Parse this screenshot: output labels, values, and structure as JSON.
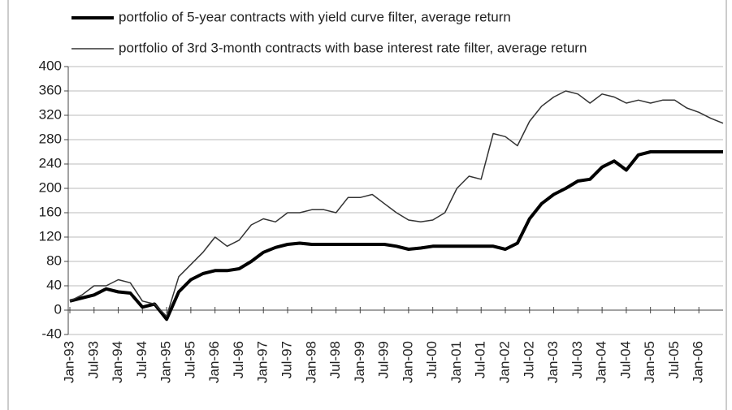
{
  "chart_data": {
    "type": "line",
    "categories": [
      "Jan-93",
      null,
      "Jul-93",
      null,
      "Jan-94",
      null,
      "Jul-94",
      null,
      "Jan-95",
      null,
      "Jul-95",
      null,
      "Jan-96",
      null,
      "Jul-96",
      null,
      "Jan-97",
      null,
      "Jul-97",
      null,
      "Jan-98",
      null,
      "Jul-98",
      null,
      "Jan-99",
      null,
      "Jul-99",
      null,
      "Jan-00",
      null,
      "Jul-00",
      null,
      "Jan-01",
      null,
      "Jul-01",
      null,
      "Jan-02",
      null,
      "Jul-02",
      null,
      "Jan-03",
      null,
      "Jul-03",
      null,
      "Jan-04",
      null,
      "Jul-04",
      null,
      "Jan-05",
      null,
      "Jul-05",
      null,
      "Jan-06",
      null,
      null
    ],
    "series": [
      {
        "name": "portfolio of 5-year contracts with yield curve filter, average return",
        "color": "#000000",
        "width": 4,
        "values": [
          15,
          20,
          25,
          35,
          30,
          28,
          5,
          10,
          -15,
          30,
          50,
          60,
          65,
          65,
          68,
          80,
          95,
          103,
          108,
          110,
          108,
          108,
          108,
          108,
          108,
          108,
          108,
          105,
          100,
          102,
          105,
          105,
          105,
          105,
          105,
          105,
          100,
          110,
          150,
          175,
          190,
          200,
          212,
          215,
          235,
          245,
          230,
          255,
          260,
          260,
          260,
          260,
          260,
          260,
          260
        ]
      },
      {
        "name": "portfolio of 3rd 3-month contracts with base interest rate filter, average return",
        "color": "#333333",
        "width": 1.5,
        "values": [
          15,
          25,
          40,
          40,
          50,
          45,
          15,
          10,
          -10,
          55,
          75,
          95,
          120,
          105,
          115,
          140,
          150,
          145,
          160,
          160,
          165,
          165,
          160,
          185,
          185,
          190,
          175,
          160,
          148,
          145,
          148,
          160,
          200,
          220,
          215,
          290,
          285,
          270,
          310,
          335,
          350,
          360,
          355,
          340,
          355,
          350,
          340,
          345,
          340,
          345,
          345,
          332,
          325,
          315,
          307
        ]
      }
    ],
    "ylim": [
      -40,
      400
    ],
    "yticks": [
      -40,
      0,
      40,
      80,
      120,
      160,
      200,
      240,
      280,
      320,
      360,
      400
    ],
    "grid": true,
    "legend": "top"
  }
}
